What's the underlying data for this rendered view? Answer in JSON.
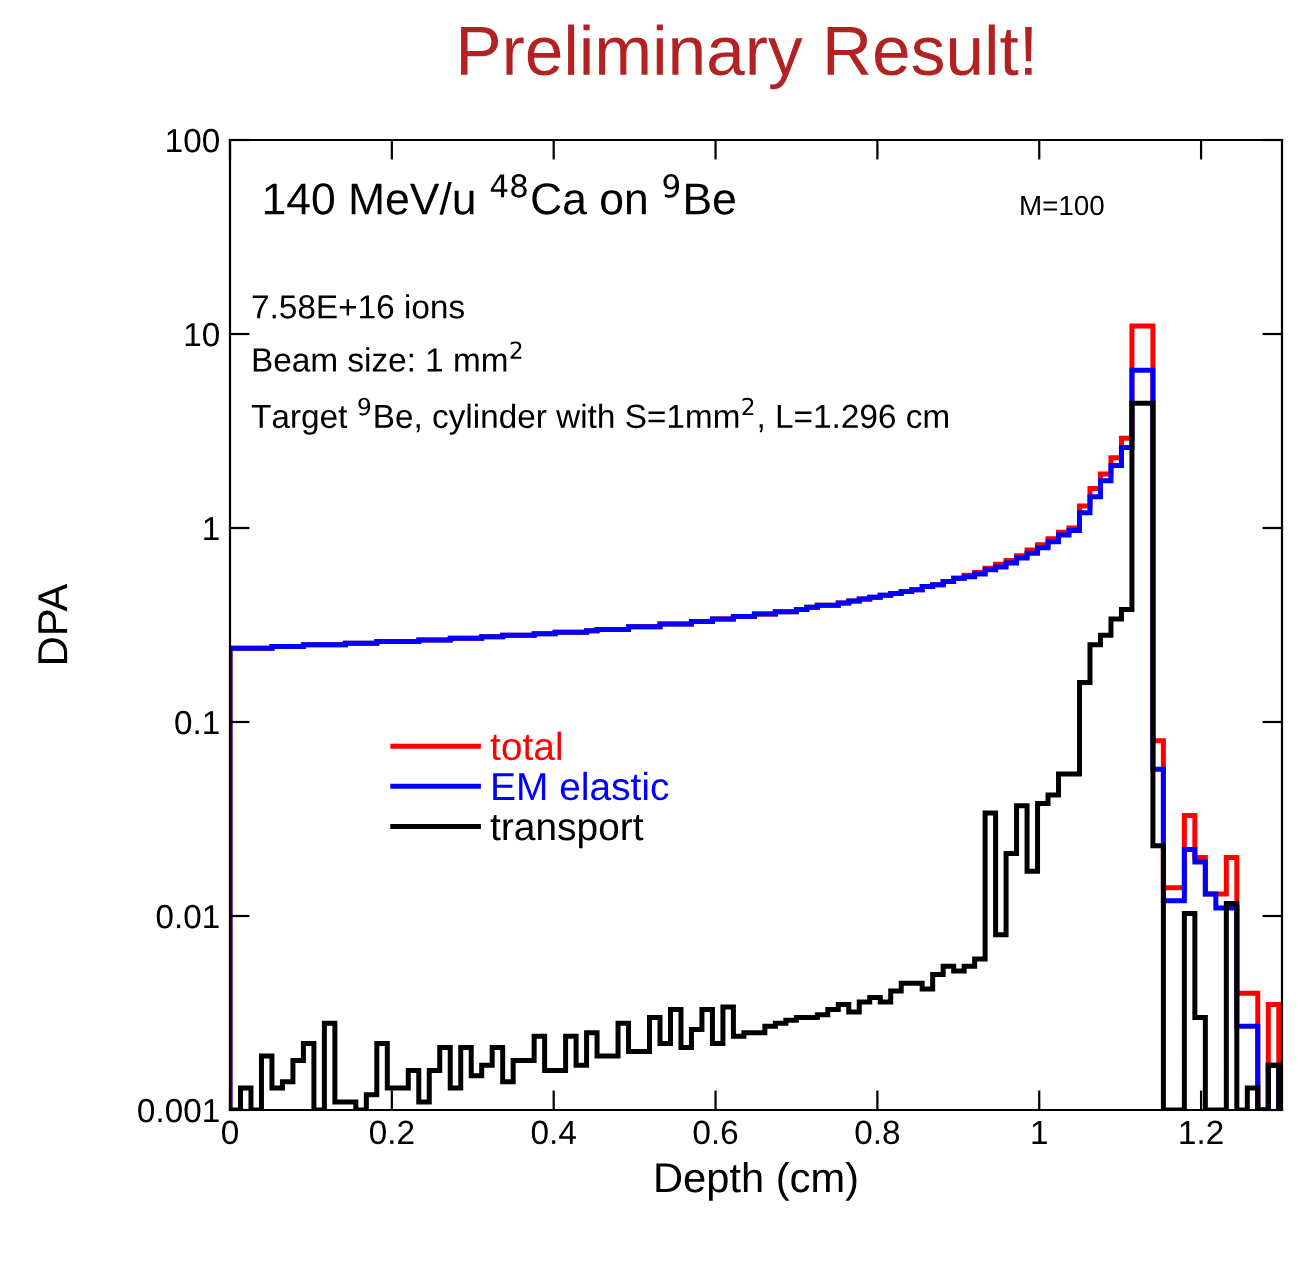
{
  "chart_data": {
    "type": "histogram",
    "title": "Preliminary Result!",
    "xlabel": "Depth (cm)",
    "ylabel": "DPA",
    "annotations": [
      "140 MeV/u $^{48}$Ca on $^{9}$Be",
      "M=100",
      "7.58E+16 ions",
      "Beam size: 1 mm$^{2}$",
      "Target $^{9}$Be, cylinder with S=1mm$^{2}$, L=1.296 cm"
    ],
    "bins": [
      0,
      0.01296,
      0.02592,
      0.03888,
      0.05184,
      0.0648,
      0.07776,
      0.09072,
      0.10368,
      0.11664,
      0.1296,
      0.14256,
      0.15552,
      0.16848,
      0.18144,
      0.1944,
      0.20736,
      0.22032,
      0.23328,
      0.24624,
      0.2592,
      0.27216,
      0.28512,
      0.29808,
      0.31104,
      0.324,
      0.33696,
      0.34992,
      0.36288,
      0.37584,
      0.3888,
      0.40176,
      0.41472,
      0.42768,
      0.44064,
      0.4536,
      0.46656,
      0.47952,
      0.49248,
      0.50544,
      0.5184,
      0.53136,
      0.54432,
      0.55728,
      0.57024,
      0.5832,
      0.59616,
      0.60912,
      0.62208,
      0.63504,
      0.648,
      0.66096,
      0.67392,
      0.68688,
      0.69984,
      0.7128,
      0.72576,
      0.73872,
      0.75168,
      0.76464,
      0.7776,
      0.79056,
      0.80352,
      0.81648,
      0.82944,
      0.8424,
      0.85536,
      0.86832,
      0.88128,
      0.89424,
      0.9072,
      0.92016,
      0.93312,
      0.94608,
      0.95904,
      0.972,
      0.98496,
      0.99792,
      1.01088,
      1.02384,
      1.0368,
      1.04976,
      1.06272,
      1.07568,
      1.08864,
      1.1016,
      1.11456,
      1.12752,
      1.14048,
      1.15344,
      1.1664,
      1.17936,
      1.19232,
      1.20528,
      1.21824,
      1.2312,
      1.24416,
      1.25712,
      1.27008,
      1.28304,
      1.296
    ],
    "series": [
      {
        "name": "total",
        "color": "#ff0000",
        "values": [
          0.24,
          0.24,
          0.24,
          0.24,
          0.245,
          0.245,
          0.245,
          0.25,
          0.25,
          0.25,
          0.25,
          0.255,
          0.255,
          0.255,
          0.26,
          0.26,
          0.26,
          0.26,
          0.265,
          0.265,
          0.265,
          0.27,
          0.27,
          0.27,
          0.275,
          0.275,
          0.28,
          0.28,
          0.28,
          0.285,
          0.285,
          0.29,
          0.29,
          0.29,
          0.295,
          0.3,
          0.3,
          0.3,
          0.31,
          0.31,
          0.31,
          0.32,
          0.32,
          0.32,
          0.33,
          0.33,
          0.34,
          0.34,
          0.35,
          0.35,
          0.36,
          0.36,
          0.37,
          0.37,
          0.38,
          0.39,
          0.4,
          0.4,
          0.41,
          0.42,
          0.43,
          0.44,
          0.45,
          0.46,
          0.47,
          0.48,
          0.5,
          0.51,
          0.53,
          0.55,
          0.57,
          0.59,
          0.62,
          0.65,
          0.68,
          0.72,
          0.77,
          0.82,
          0.88,
          0.95,
          1.0,
          1.3,
          1.6,
          1.9,
          2.3,
          2.9,
          11,
          11,
          0.08,
          0.014,
          0.014,
          0.033,
          0.02,
          0.013,
          0.013,
          0.02,
          0.004,
          0.004,
          null,
          0.0035
        ]
      },
      {
        "name": "EM elastic",
        "color": "#0000ff",
        "values": [
          0.24,
          0.24,
          0.24,
          0.24,
          0.245,
          0.245,
          0.245,
          0.25,
          0.25,
          0.25,
          0.25,
          0.255,
          0.255,
          0.255,
          0.26,
          0.26,
          0.26,
          0.26,
          0.265,
          0.265,
          0.265,
          0.27,
          0.27,
          0.27,
          0.275,
          0.275,
          0.28,
          0.28,
          0.28,
          0.285,
          0.285,
          0.29,
          0.29,
          0.29,
          0.295,
          0.3,
          0.3,
          0.3,
          0.31,
          0.31,
          0.31,
          0.32,
          0.32,
          0.32,
          0.33,
          0.33,
          0.34,
          0.34,
          0.35,
          0.35,
          0.36,
          0.36,
          0.37,
          0.37,
          0.38,
          0.39,
          0.4,
          0.4,
          0.41,
          0.42,
          0.43,
          0.44,
          0.45,
          0.46,
          0.47,
          0.48,
          0.5,
          0.51,
          0.53,
          0.55,
          0.56,
          0.58,
          0.61,
          0.63,
          0.66,
          0.7,
          0.74,
          0.79,
          0.85,
          0.92,
          0.97,
          1.2,
          1.45,
          1.75,
          2.1,
          2.6,
          6.5,
          6.5,
          0.057,
          0.012,
          0.012,
          0.022,
          0.019,
          0.013,
          0.011,
          0.011,
          0.0027,
          0.0027,
          null,
          0.0017
        ]
      },
      {
        "name": "transport",
        "color": "#000000",
        "values": [
          null,
          0.0013,
          null,
          0.0019,
          0.0013,
          0.0014,
          0.0018,
          0.0022,
          null,
          0.0028,
          0.0011,
          0.0011,
          0.001,
          0.0012,
          0.0022,
          0.0013,
          0.0013,
          0.0016,
          0.0011,
          0.0016,
          0.0021,
          0.0013,
          0.0021,
          0.0015,
          0.0017,
          0.0021,
          0.0014,
          0.0018,
          0.0018,
          0.0024,
          0.0016,
          0.0016,
          0.0024,
          0.0017,
          0.0025,
          0.0019,
          0.0019,
          0.0028,
          0.002,
          0.002,
          0.003,
          0.0022,
          0.0033,
          0.0021,
          0.0026,
          0.0033,
          0.0022,
          0.0034,
          0.0024,
          0.0025,
          0.0025,
          0.0027,
          0.0028,
          0.0029,
          0.003,
          0.003,
          0.0031,
          0.0033,
          0.0035,
          0.0032,
          0.0036,
          0.0038,
          0.0036,
          0.0041,
          0.0045,
          0.0045,
          0.0042,
          0.005,
          0.0055,
          0.0052,
          0.0055,
          0.006,
          0.034,
          0.008,
          0.021,
          0.037,
          0.017,
          0.038,
          0.042,
          0.054,
          0.054,
          0.16,
          0.25,
          0.28,
          0.34,
          0.38,
          4.4,
          4.4,
          0.023,
          null,
          null,
          0.0103,
          0.003,
          null,
          null,
          0.0116,
          null,
          0.0013,
          null,
          0.0017
        ]
      }
    ],
    "log": "y",
    "xlim": [
      0,
      1.3
    ],
    "xticks": [
      0,
      0.2,
      0.4,
      0.6,
      0.8,
      1,
      1.2
    ],
    "ylim": [
      0.001,
      100
    ],
    "yticks": [
      0.001,
      0.01,
      0.1,
      1,
      10,
      100
    ],
    "legend": "center left",
    "grid": false
  }
}
